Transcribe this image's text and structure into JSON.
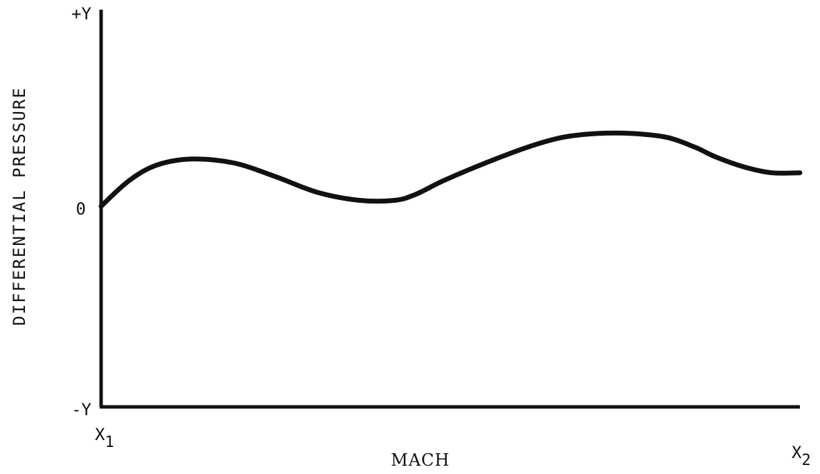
{
  "chart_data": {
    "type": "line",
    "title": "",
    "xlabel": "MACH",
    "ylabel": "DIFFERENTIAL PRESSURE",
    "x_ticks": [
      {
        "main": "X",
        "sub": "1"
      },
      {
        "main": "X",
        "sub": "2"
      }
    ],
    "y_ticks": [
      "+Y",
      "0",
      "-Y"
    ],
    "xlim": [
      0,
      1
    ],
    "ylim": [
      -1,
      1
    ],
    "grid": false,
    "line_color": "#111111",
    "series": [
      {
        "x": [
          0.0,
          0.04,
          0.08,
          0.13,
          0.19,
          0.25,
          0.31,
          0.37,
          0.42,
          0.45,
          0.49,
          0.55,
          0.61,
          0.66,
          0.71,
          0.76,
          0.81,
          0.85,
          0.88,
          0.92,
          0.96,
          1.0
        ],
        "y": [
          0.0,
          0.13,
          0.21,
          0.24,
          0.22,
          0.15,
          0.07,
          0.03,
          0.03,
          0.06,
          0.13,
          0.22,
          0.3,
          0.35,
          0.37,
          0.37,
          0.35,
          0.3,
          0.25,
          0.2,
          0.17,
          0.17
        ]
      }
    ]
  }
}
